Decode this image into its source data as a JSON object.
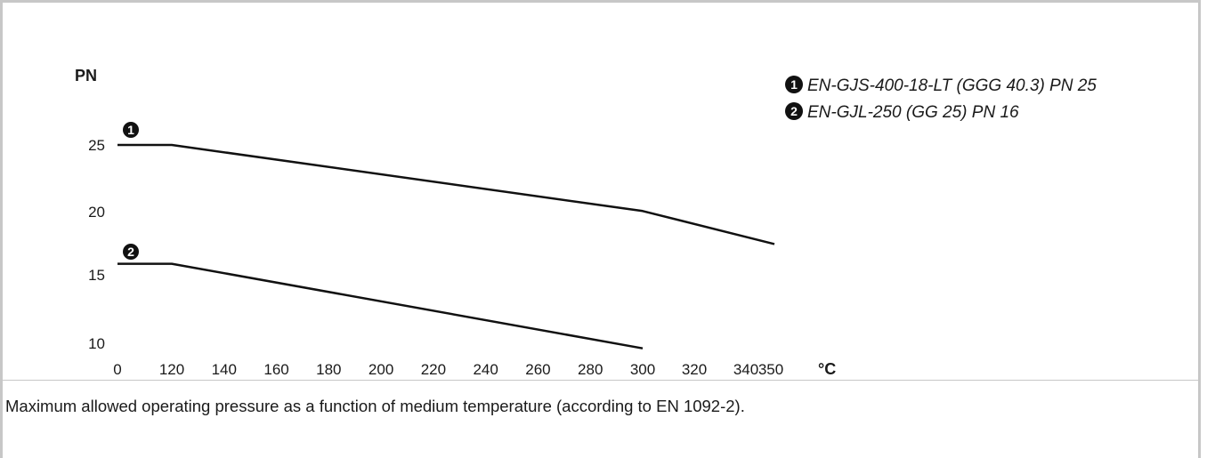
{
  "caption": "Maximum allowed operating pressure as a function of medium temperature (according to EN 1092-2).",
  "chart_data": {
    "type": "line",
    "ylabel": "PN",
    "xlabel": "°C",
    "x_ticks": [
      "0",
      "120",
      "140",
      "160",
      "180",
      "200",
      "220",
      "240",
      "260",
      "280",
      "300",
      "320",
      "340",
      "350"
    ],
    "y_ticks": [
      "10",
      "15",
      "20",
      "25"
    ],
    "series": [
      {
        "name": "EN-GJS-400-18-LT (GGG 40.3) PN 25",
        "marker": "1",
        "x": [
          0,
          120,
          300,
          350
        ],
        "y": [
          25,
          25,
          20,
          17.5
        ]
      },
      {
        "name": "EN-GJL-250 (GG 25) PN 16",
        "marker": "2",
        "x": [
          0,
          120,
          300
        ],
        "y": [
          16,
          16,
          9.6
        ]
      }
    ],
    "legend": [
      {
        "marker": "1",
        "label": "EN-GJS-400-18-LT (GGG 40.3) PN 25"
      },
      {
        "marker": "2",
        "label": "EN-GJL-250 (GG 25) PN 16"
      }
    ],
    "legend_position": "top-right",
    "grid": false,
    "line_color": "#111111"
  }
}
